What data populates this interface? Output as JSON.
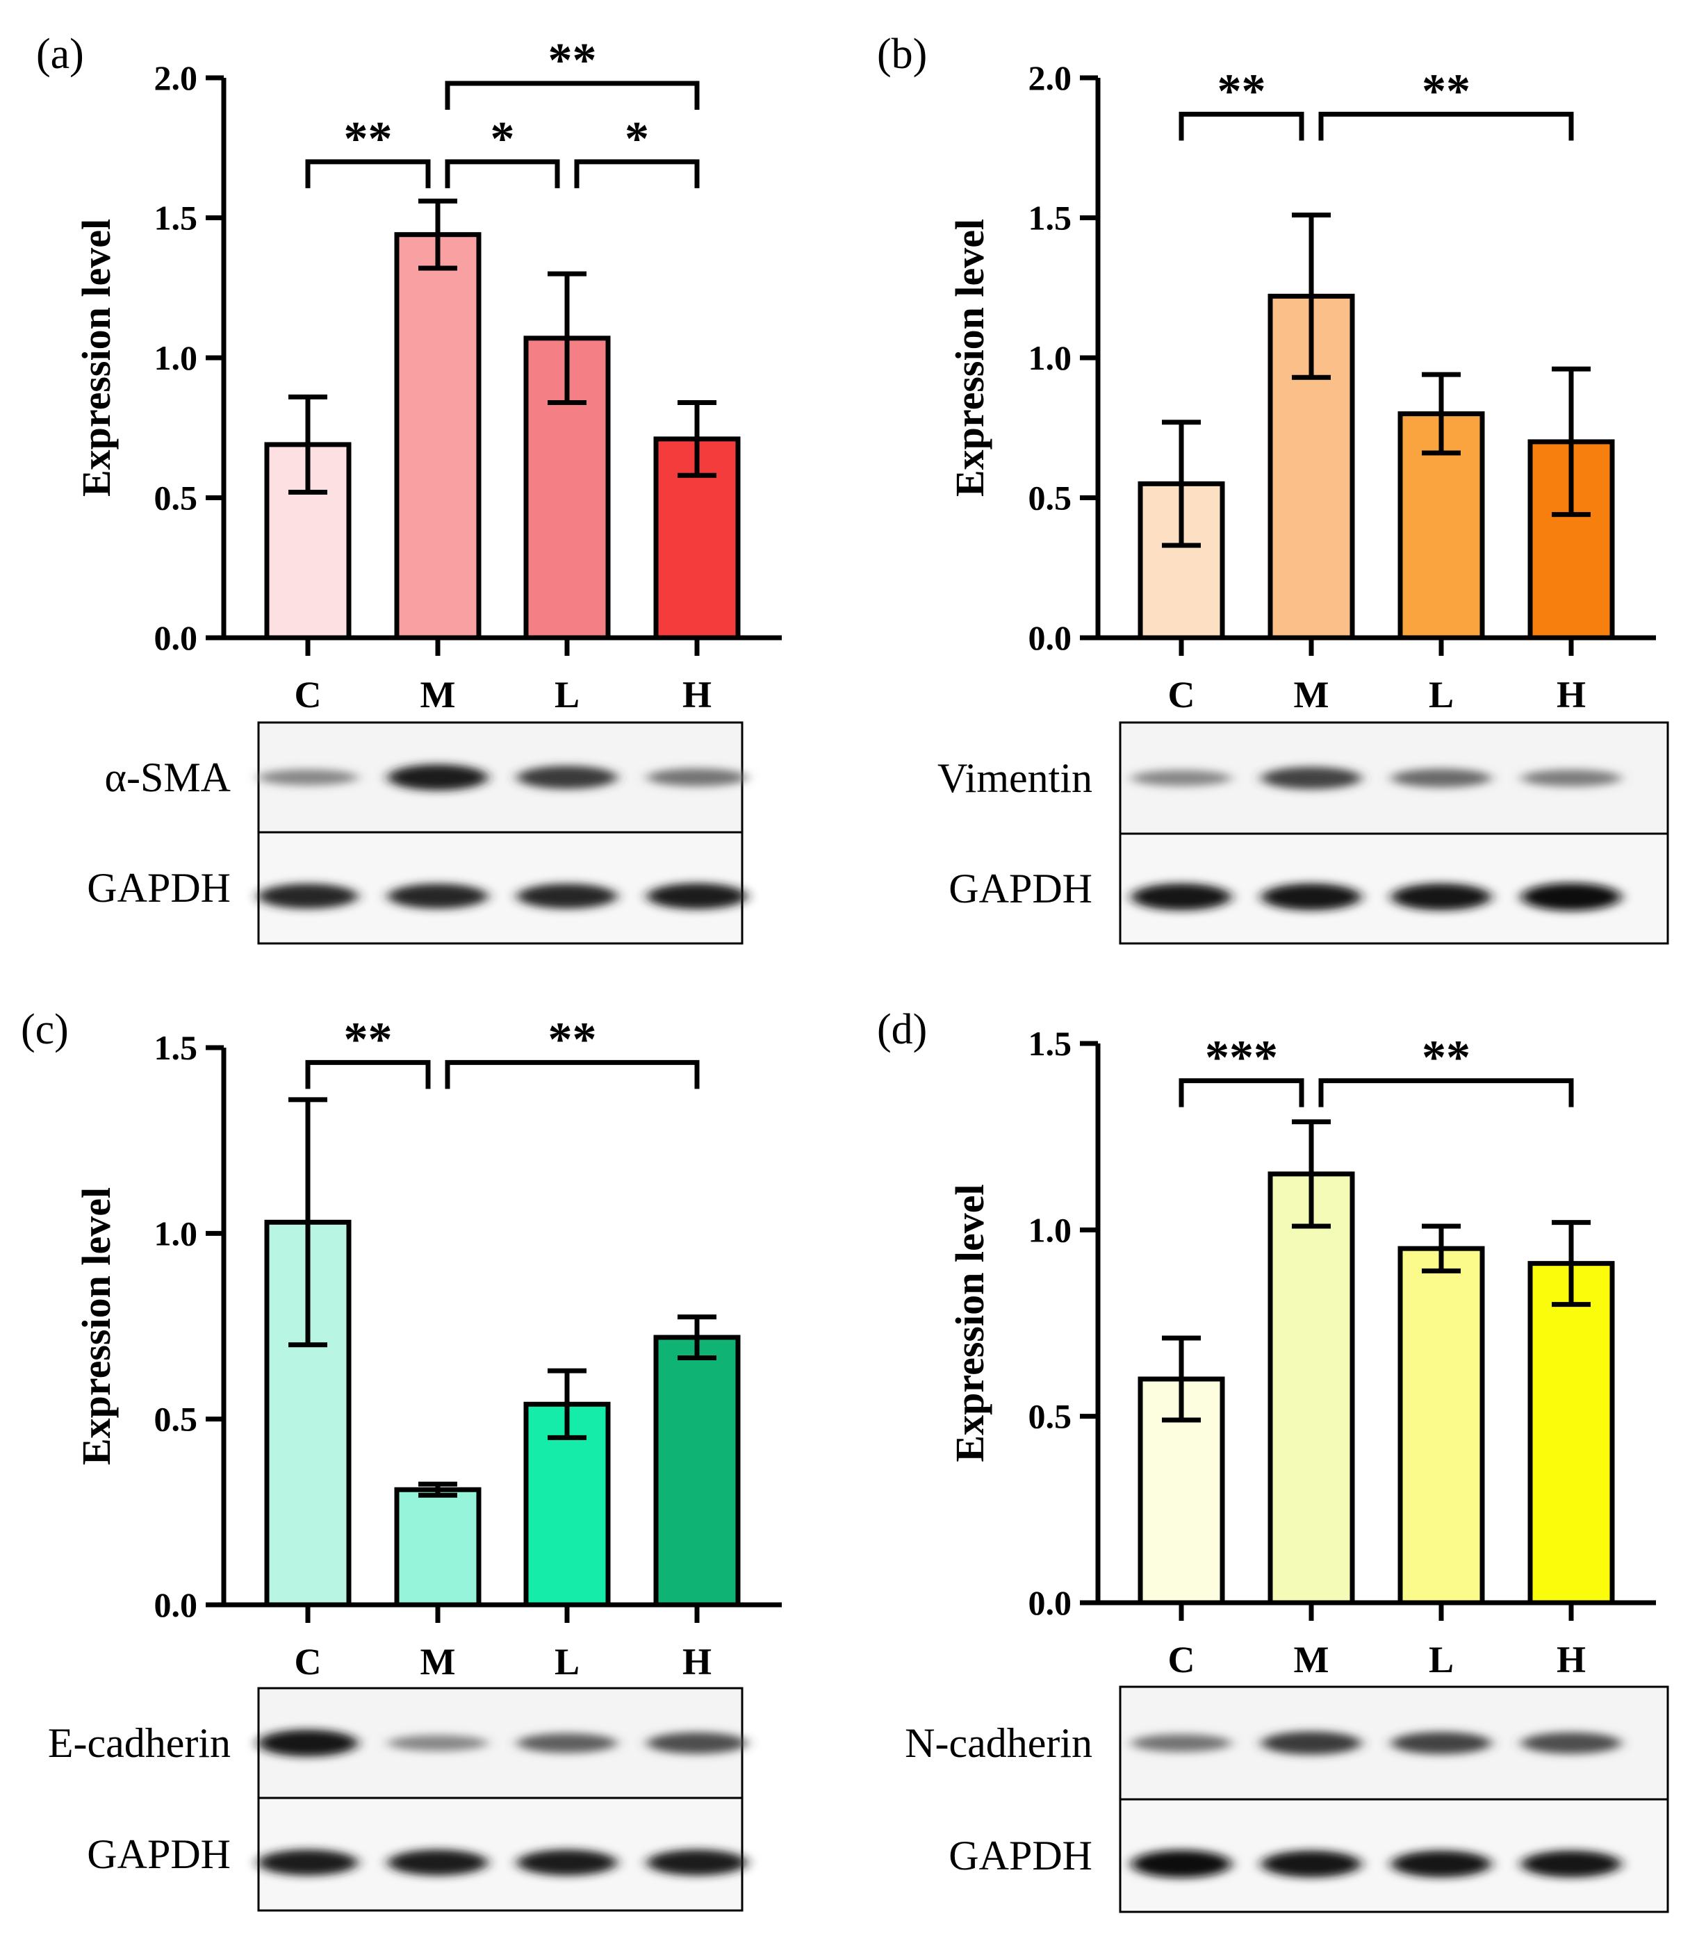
{
  "chart_data": [
    {
      "type": "bar",
      "panel_label": "(a)",
      "ylabel": "Expression level",
      "categories": [
        "C",
        "M",
        "L",
        "H"
      ],
      "values": [
        0.69,
        1.44,
        1.07,
        0.71
      ],
      "errors": [
        0.17,
        0.12,
        0.23,
        0.13
      ],
      "colors": [
        "#fde0e2",
        "#f9a0a3",
        "#f47f84",
        "#f43c3d"
      ],
      "ylim": [
        0,
        2.0
      ],
      "yticks": [
        "0.0",
        "0.5",
        "1.0",
        "1.5",
        "2.0"
      ],
      "significance": [
        {
          "from": 0,
          "to": 1,
          "label": "**",
          "y": 1.7
        },
        {
          "from": 1,
          "to": 2,
          "label": "*",
          "y": 1.7
        },
        {
          "from": 2,
          "to": 3,
          "label": "*",
          "y": 1.7
        },
        {
          "from": 1,
          "to": 3,
          "label": "**",
          "y": 1.98
        }
      ],
      "blots": [
        {
          "label": "α-SMA",
          "intensity": [
            0.35,
            0.9,
            0.75,
            0.45
          ]
        },
        {
          "label": "GAPDH",
          "intensity": [
            0.85,
            0.85,
            0.85,
            0.9
          ]
        }
      ]
    },
    {
      "type": "bar",
      "panel_label": "(b)",
      "ylabel": "Expression level",
      "categories": [
        "C",
        "M",
        "L",
        "H"
      ],
      "values": [
        0.55,
        1.22,
        0.8,
        0.7
      ],
      "errors": [
        0.22,
        0.29,
        0.14,
        0.26
      ],
      "colors": [
        "#fde0c3",
        "#fbc08a",
        "#f9a43f",
        "#f77f0d"
      ],
      "ylim": [
        0,
        2.0
      ],
      "yticks": [
        "0.0",
        "0.5",
        "1.0",
        "1.5",
        "2.0"
      ],
      "significance": [
        {
          "from": 0,
          "to": 1,
          "label": "**",
          "y": 1.87
        },
        {
          "from": 1,
          "to": 3,
          "label": "**",
          "y": 1.87
        }
      ],
      "blots": [
        {
          "label": "Vimentin",
          "intensity": [
            0.35,
            0.7,
            0.5,
            0.4
          ]
        },
        {
          "label": "GAPDH",
          "intensity": [
            0.95,
            0.95,
            0.95,
            1.0
          ]
        }
      ]
    },
    {
      "type": "bar",
      "panel_label": "(c)",
      "ylabel": "Expression level",
      "categories": [
        "C",
        "M",
        "L",
        "H"
      ],
      "values": [
        1.03,
        0.31,
        0.54,
        0.72
      ],
      "errors": [
        0.33,
        0.015,
        0.09,
        0.055
      ],
      "colors": [
        "#b8f5e3",
        "#95f4d9",
        "#16ecaa",
        "#0fb374"
      ],
      "ylim": [
        0,
        1.5
      ],
      "yticks": [
        "0.0",
        "0.5",
        "1.0",
        "1.5"
      ],
      "significance": [
        {
          "from": 0,
          "to": 1,
          "label": "**",
          "y": 1.46
        },
        {
          "from": 1,
          "to": 3,
          "label": "**",
          "y": 1.46
        }
      ],
      "blots": [
        {
          "label": "E-cadherin",
          "intensity": [
            0.95,
            0.35,
            0.55,
            0.65
          ]
        },
        {
          "label": "GAPDH",
          "intensity": [
            0.9,
            0.9,
            0.9,
            0.9
          ]
        }
      ]
    },
    {
      "type": "bar",
      "panel_label": "(d)",
      "ylabel": "Expression level",
      "categories": [
        "C",
        "M",
        "L",
        "H"
      ],
      "values": [
        0.6,
        1.15,
        0.95,
        0.91
      ],
      "errors": [
        0.11,
        0.14,
        0.06,
        0.11
      ],
      "colors": [
        "#fdfde0",
        "#f4fbb7",
        "#fbfb8c",
        "#fbfb0c"
      ],
      "ylim": [
        0,
        1.5
      ],
      "yticks": [
        "0.0",
        "0.5",
        "1.0",
        "1.5"
      ],
      "significance": [
        {
          "from": 0,
          "to": 1,
          "label": "***",
          "y": 1.4
        },
        {
          "from": 1,
          "to": 3,
          "label": "**",
          "y": 1.4
        }
      ],
      "blots": [
        {
          "label": "N-cadherin",
          "intensity": [
            0.45,
            0.75,
            0.7,
            0.65
          ]
        },
        {
          "label": "GAPDH",
          "intensity": [
            1.0,
            0.95,
            0.95,
            0.95
          ]
        }
      ]
    }
  ]
}
